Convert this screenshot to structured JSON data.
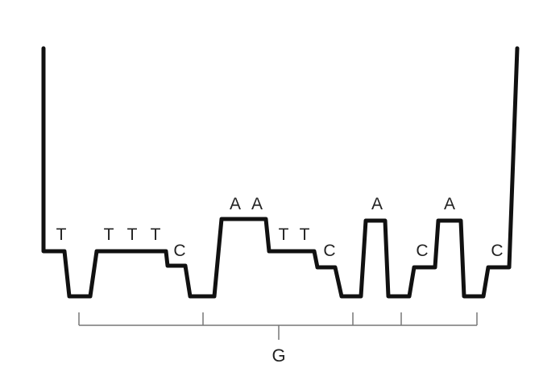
{
  "colors": {
    "trace": "#111111",
    "bracket": "#777777",
    "text": "#222222",
    "background": "#ffffff"
  },
  "base_labels": [
    "T",
    "T",
    "T",
    "T",
    "C",
    "A",
    "A",
    "T",
    "T",
    "C",
    "A",
    "C",
    "A",
    "C"
  ],
  "bracket_label": "G"
}
